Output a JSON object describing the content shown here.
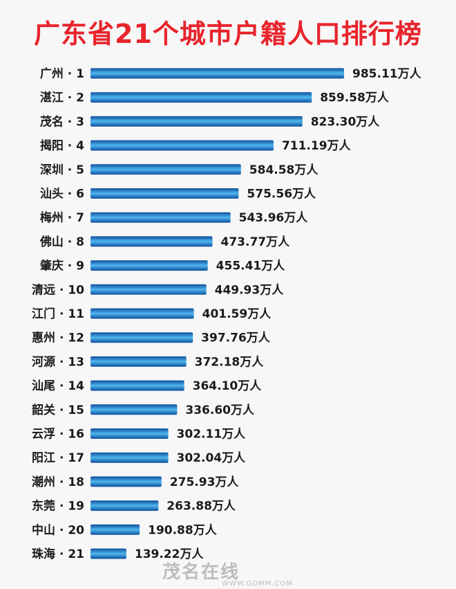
{
  "title": "广东省21个城市户籍人口排行榜",
  "watermark": {
    "logo": "茂名在线",
    "url": "WWW.GDMM.COM"
  },
  "colors": {
    "title": "#e8242c",
    "bar_dark": "#0e4f9c",
    "bar_light": "#4fb6ee",
    "background": "#f7f7f7"
  },
  "chart_data": {
    "type": "bar",
    "orientation": "horizontal",
    "unit": "万人",
    "categories": [
      "广州 · 1",
      "湛江 · 2",
      "茂名 · 3",
      "揭阳 · 4",
      "深圳 · 5",
      "汕头 · 6",
      "梅州 · 7",
      "佛山 · 8",
      "肇庆 · 9",
      "清远 · 10",
      "江门 · 11",
      "惠州 · 12",
      "河源 · 13",
      "汕尾 · 14",
      "韶关 · 15",
      "云浮 · 16",
      "阳江 · 17",
      "潮州 · 18",
      "东莞 · 19",
      "中山 · 20",
      "珠海 · 21"
    ],
    "values": [
      985.11,
      859.58,
      823.3,
      711.19,
      584.58,
      575.56,
      543.96,
      473.77,
      455.41,
      449.93,
      401.59,
      397.76,
      372.18,
      364.1,
      336.6,
      302.11,
      302.04,
      275.93,
      263.88,
      190.88,
      139.22
    ],
    "value_labels": [
      "985.11万人",
      "859.58万人",
      "823.30万人",
      "711.19万人",
      "584.58万人",
      "575.56万人",
      "543.96万人",
      "473.77万人",
      "455.41万人",
      "449.93万人",
      "401.59万人",
      "397.76万人",
      "372.18万人",
      "364.10万人",
      "336.60万人",
      "302.11万人",
      "302.04万人",
      "275.93万人",
      "263.88万人",
      "190.88万人",
      "139.22万人"
    ],
    "title": "广东省21个城市户籍人口排行榜",
    "xlabel": "",
    "ylabel": "",
    "grid": false,
    "legend": "none"
  }
}
